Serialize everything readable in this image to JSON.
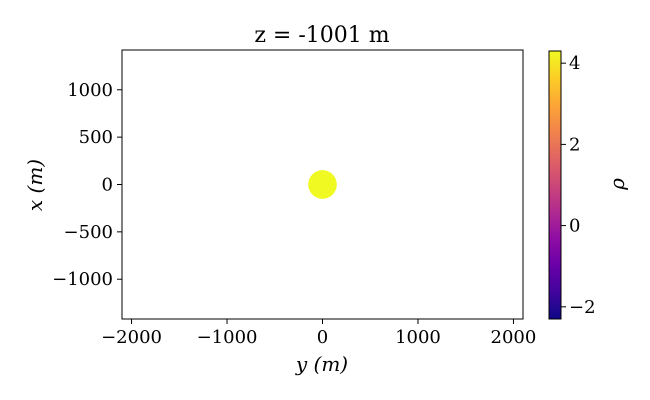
{
  "chart_data": {
    "type": "heatmap",
    "title": "z = -1001 m",
    "xlabel": "y (m)",
    "ylabel": "x (m)",
    "xlim": [
      -2100,
      2100
    ],
    "ylim": [
      -1420,
      1420
    ],
    "xticks": [
      -2000,
      -1000,
      0,
      1000,
      2000
    ],
    "yticks": [
      -1000,
      -500,
      0,
      500,
      1000
    ],
    "xtick_labels": [
      "−2000",
      "−1000",
      "0",
      "1000",
      "2000"
    ],
    "ytick_labels": [
      "−1000",
      "−500",
      "0",
      "500",
      "1000"
    ],
    "features": [
      {
        "shape": "circle",
        "center_y": 0,
        "center_x": 0,
        "radius_m": 150,
        "value": 4.3
      }
    ],
    "background_value": null,
    "grid": false,
    "colorbar": {
      "label": "ρ",
      "colormap": "plasma",
      "vmin": -2.3,
      "vmax": 4.3,
      "ticks": [
        -2,
        0,
        2,
        4
      ],
      "tick_labels": [
        "−2",
        "0",
        "2",
        "4"
      ]
    }
  },
  "colors": {
    "feature_fill": "#f0f921",
    "axes_frame": "#000000",
    "background": "#ffffff"
  }
}
